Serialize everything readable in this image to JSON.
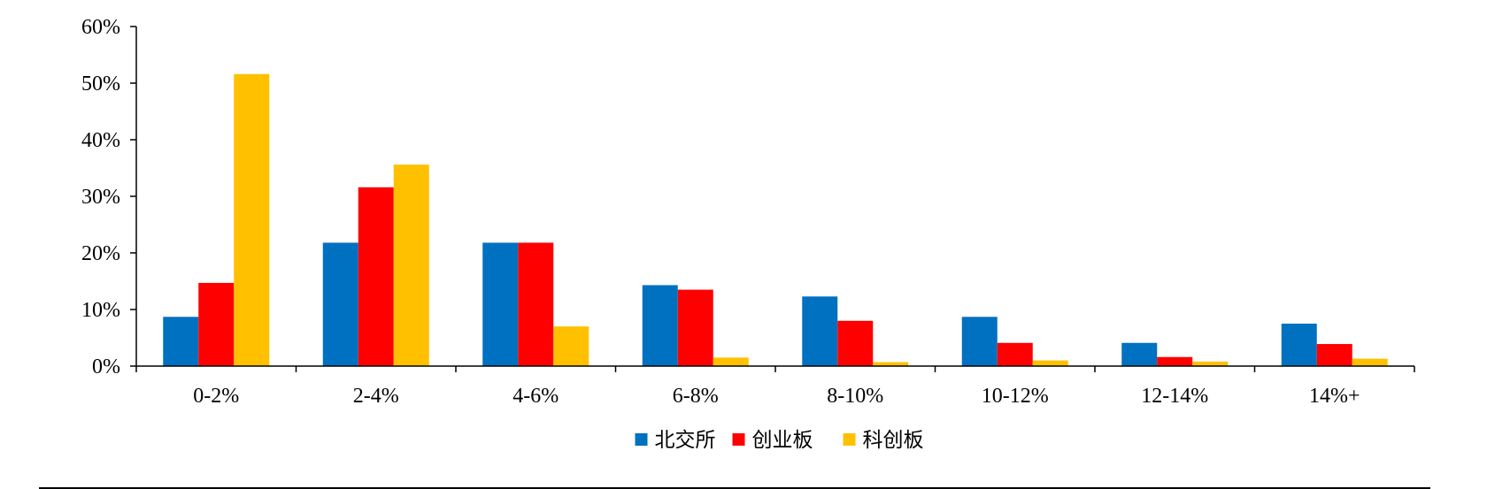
{
  "chart_data": {
    "type": "bar",
    "categories": [
      "0-2%",
      "2-4%",
      "4-6%",
      "6-8%",
      "8-10%",
      "10-12%",
      "12-14%",
      "14%+"
    ],
    "series": [
      {
        "name": "北交所",
        "color": "#0070C0",
        "values": [
          8.7,
          21.8,
          21.8,
          14.3,
          12.3,
          8.7,
          4.1,
          7.5
        ]
      },
      {
        "name": "创业板",
        "color": "#FF0000",
        "values": [
          14.7,
          31.6,
          21.8,
          13.5,
          8.0,
          4.1,
          1.6,
          3.9
        ]
      },
      {
        "name": "科创板",
        "color": "#FFC000",
        "values": [
          51.6,
          35.6,
          7.0,
          1.5,
          0.7,
          1.0,
          0.8,
          1.3
        ]
      }
    ],
    "ylim": [
      0,
      60
    ],
    "yticks": [
      0,
      10,
      20,
      30,
      40,
      50,
      60
    ],
    "ytick_labels": [
      "0%",
      "10%",
      "20%",
      "30%",
      "40%",
      "50%",
      "60%"
    ],
    "y_unit": "%",
    "grid": false,
    "legend_position": "bottom-center",
    "title": "",
    "xlabel": "",
    "ylabel": ""
  }
}
